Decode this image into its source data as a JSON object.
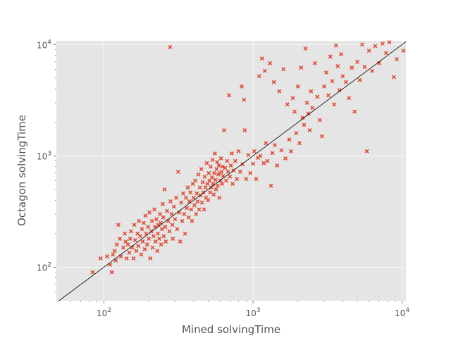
{
  "chart_data": {
    "type": "scatter",
    "title": "",
    "xlabel": "Mined solvingTime",
    "ylabel": "Octagon solvingTime",
    "x_scale": "log",
    "y_scale": "log",
    "xlim": [
      48,
      10600
    ],
    "ylim": [
      50,
      10800
    ],
    "x_ticks": [
      {
        "base": "10",
        "exp": "2",
        "value": 100
      },
      {
        "base": "10",
        "exp": "3",
        "value": 1000
      },
      {
        "base": "10",
        "exp": "4",
        "value": 10000
      }
    ],
    "y_ticks": [
      {
        "base": "10",
        "exp": "2",
        "value": 100
      },
      {
        "base": "10",
        "exp": "3",
        "value": 1000
      },
      {
        "base": "10",
        "exp": "4",
        "value": 10000
      }
    ],
    "grid": true,
    "reference_line": "y = x",
    "colors": {
      "background": "#e5e5e5",
      "grid": "#ffffff",
      "marker": "#e24a33",
      "line": "#000000",
      "text": "#555555"
    },
    "marker": "x",
    "points": [
      [
        84,
        90
      ],
      [
        95,
        120
      ],
      [
        105,
        125
      ],
      [
        110,
        105
      ],
      [
        113,
        90
      ],
      [
        115,
        130
      ],
      [
        118,
        140
      ],
      [
        120,
        115
      ],
      [
        122,
        160
      ],
      [
        125,
        240
      ],
      [
        128,
        180
      ],
      [
        130,
        125
      ],
      [
        135,
        150
      ],
      [
        138,
        200
      ],
      [
        140,
        170
      ],
      [
        142,
        120
      ],
      [
        145,
        160
      ],
      [
        148,
        135
      ],
      [
        150,
        180
      ],
      [
        152,
        210
      ],
      [
        155,
        150
      ],
      [
        158,
        120
      ],
      [
        160,
        240
      ],
      [
        162,
        175
      ],
      [
        165,
        140
      ],
      [
        168,
        200
      ],
      [
        170,
        155
      ],
      [
        172,
        260
      ],
      [
        175,
        190
      ],
      [
        178,
        130
      ],
      [
        180,
        220
      ],
      [
        182,
        170
      ],
      [
        185,
        250
      ],
      [
        188,
        145
      ],
      [
        190,
        290
      ],
      [
        192,
        200
      ],
      [
        195,
        160
      ],
      [
        198,
        230
      ],
      [
        200,
        180
      ],
      [
        202,
        310
      ],
      [
        205,
        120
      ],
      [
        208,
        210
      ],
      [
        210,
        260
      ],
      [
        212,
        150
      ],
      [
        215,
        190
      ],
      [
        218,
        330
      ],
      [
        220,
        230
      ],
      [
        222,
        170
      ],
      [
        225,
        270
      ],
      [
        228,
        140
      ],
      [
        230,
        200
      ],
      [
        232,
        240
      ],
      [
        235,
        180
      ],
      [
        238,
        300
      ],
      [
        240,
        250
      ],
      [
        242,
        160
      ],
      [
        245,
        220
      ],
      [
        248,
        370
      ],
      [
        250,
        280
      ],
      [
        252,
        190
      ],
      [
        255,
        500
      ],
      [
        258,
        230
      ],
      [
        260,
        170
      ],
      [
        265,
        320
      ],
      [
        270,
        260
      ],
      [
        275,
        210
      ],
      [
        278,
        9500
      ],
      [
        280,
        390
      ],
      [
        285,
        300
      ],
      [
        288,
        240
      ],
      [
        290,
        180
      ],
      [
        295,
        350
      ],
      [
        300,
        270
      ],
      [
        305,
        420
      ],
      [
        310,
        220
      ],
      [
        315,
        720
      ],
      [
        320,
        310
      ],
      [
        325,
        170
      ],
      [
        330,
        380
      ],
      [
        335,
        260
      ],
      [
        340,
        460
      ],
      [
        345,
        300
      ],
      [
        350,
        200
      ],
      [
        355,
        420
      ],
      [
        360,
        340
      ],
      [
        365,
        520
      ],
      [
        370,
        280
      ],
      [
        375,
        390
      ],
      [
        380,
        470
      ],
      [
        385,
        330
      ],
      [
        390,
        260
      ],
      [
        395,
        560
      ],
      [
        400,
        420
      ],
      [
        405,
        360
      ],
      [
        410,
        600
      ],
      [
        415,
        300
      ],
      [
        420,
        460
      ],
      [
        425,
        390
      ],
      [
        430,
        680
      ],
      [
        435,
        330
      ],
      [
        440,
        520
      ],
      [
        445,
        440
      ],
      [
        450,
        760
      ],
      [
        455,
        380
      ],
      [
        460,
        580
      ],
      [
        465,
        470
      ],
      [
        470,
        330
      ],
      [
        475,
        650
      ],
      [
        480,
        520
      ],
      [
        485,
        420
      ],
      [
        490,
        860
      ],
      [
        495,
        560
      ],
      [
        500,
        400
      ],
      [
        505,
        700
      ],
      [
        510,
        600
      ],
      [
        515,
        470
      ],
      [
        520,
        800
      ],
      [
        525,
        520
      ],
      [
        530,
        640
      ],
      [
        535,
        920
      ],
      [
        540,
        560
      ],
      [
        545,
        450
      ],
      [
        550,
        700
      ],
      [
        555,
        1050
      ],
      [
        560,
        610
      ],
      [
        565,
        500
      ],
      [
        570,
        760
      ],
      [
        575,
        880
      ],
      [
        580,
        540
      ],
      [
        585,
        680
      ],
      [
        590,
        820
      ],
      [
        595,
        420
      ],
      [
        600,
        700
      ],
      [
        605,
        600
      ],
      [
        610,
        950
      ],
      [
        615,
        720
      ],
      [
        620,
        560
      ],
      [
        625,
        800
      ],
      [
        630,
        660
      ],
      [
        640,
        1700
      ],
      [
        650,
        780
      ],
      [
        660,
        600
      ],
      [
        670,
        900
      ],
      [
        680,
        720
      ],
      [
        690,
        3500
      ],
      [
        700,
        650
      ],
      [
        710,
        820
      ],
      [
        720,
        1050
      ],
      [
        730,
        560
      ],
      [
        740,
        740
      ],
      [
        760,
        900
      ],
      [
        780,
        620
      ],
      [
        800,
        1100
      ],
      [
        820,
        720
      ],
      [
        840,
        4200
      ],
      [
        850,
        840
      ],
      [
        870,
        3200
      ],
      [
        880,
        1700
      ],
      [
        900,
        620
      ],
      [
        930,
        1020
      ],
      [
        960,
        700
      ],
      [
        1000,
        850
      ],
      [
        1020,
        1100
      ],
      [
        1050,
        620
      ],
      [
        1080,
        960
      ],
      [
        1100,
        5200
      ],
      [
        1120,
        1000
      ],
      [
        1150,
        7500
      ],
      [
        1180,
        860
      ],
      [
        1200,
        5800
      ],
      [
        1220,
        1300
      ],
      [
        1250,
        900
      ],
      [
        1300,
        6800
      ],
      [
        1320,
        540
      ],
      [
        1350,
        1060
      ],
      [
        1380,
        4600
      ],
      [
        1400,
        1250
      ],
      [
        1450,
        820
      ],
      [
        1500,
        3800
      ],
      [
        1550,
        1120
      ],
      [
        1600,
        6000
      ],
      [
        1650,
        950
      ],
      [
        1700,
        2900
      ],
      [
        1750,
        1400
      ],
      [
        1800,
        1100
      ],
      [
        1850,
        3300
      ],
      [
        1900,
        2500
      ],
      [
        1950,
        1600
      ],
      [
        2000,
        4200
      ],
      [
        2050,
        1300
      ],
      [
        2100,
        6200
      ],
      [
        2150,
        2200
      ],
      [
        2200,
        1900
      ],
      [
        2250,
        9200
      ],
      [
        2300,
        3000
      ],
      [
        2350,
        2400
      ],
      [
        2400,
        1700
      ],
      [
        2450,
        3800
      ],
      [
        2500,
        2700
      ],
      [
        2600,
        6800
      ],
      [
        2700,
        3400
      ],
      [
        2800,
        2100
      ],
      [
        2900,
        1500
      ],
      [
        3000,
        4200
      ],
      [
        3100,
        5600
      ],
      [
        3200,
        3500
      ],
      [
        3300,
        7800
      ],
      [
        3400,
        4700
      ],
      [
        3500,
        2900
      ],
      [
        3600,
        9800
      ],
      [
        3700,
        6400
      ],
      [
        3800,
        3900
      ],
      [
        3900,
        8200
      ],
      [
        4000,
        5200
      ],
      [
        4200,
        4600
      ],
      [
        4400,
        3300
      ],
      [
        4600,
        6200
      ],
      [
        4800,
        2500
      ],
      [
        5000,
        7000
      ],
      [
        5200,
        4800
      ],
      [
        5400,
        10000
      ],
      [
        5600,
        6300
      ],
      [
        5800,
        1100
      ],
      [
        6000,
        8800
      ],
      [
        6300,
        5800
      ],
      [
        6600,
        9700
      ],
      [
        7000,
        6800
      ],
      [
        7400,
        10200
      ],
      [
        7800,
        8400
      ],
      [
        8200,
        10500
      ],
      [
        8800,
        5100
      ],
      [
        9200,
        7400
      ],
      [
        10200,
        8800
      ]
    ]
  }
}
